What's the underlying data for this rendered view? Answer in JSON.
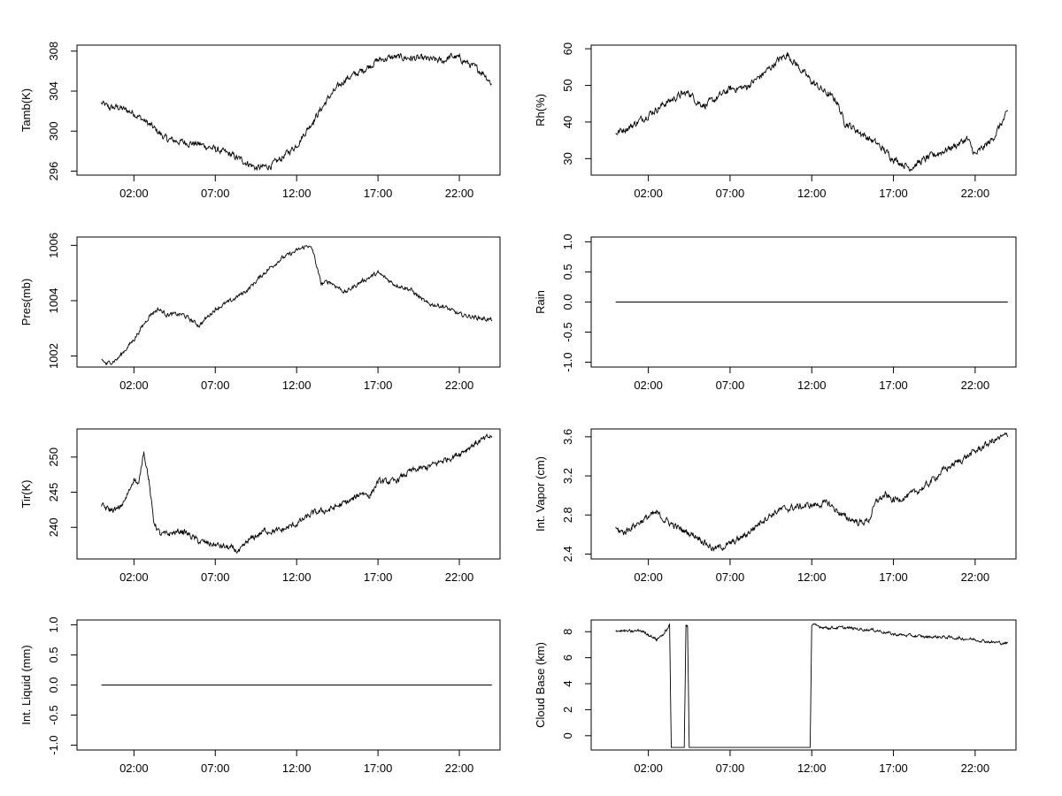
{
  "chart_data": [
    {
      "type": "line",
      "ylabel": "Tamb(K)",
      "yticks": [
        296,
        300,
        304,
        308
      ],
      "ylim": [
        295.6,
        308.6
      ],
      "xticks": [
        "02:00",
        "07:00",
        "12:00",
        "17:00",
        "22:00"
      ],
      "xlim_hours": [
        -1.5,
        24.5
      ],
      "x_hours": [
        0,
        0.5,
        1,
        2,
        3,
        4,
        5,
        6,
        7,
        8,
        8.5,
        9,
        9.5,
        10,
        10.5,
        11,
        12,
        13,
        14,
        15,
        16,
        17,
        18,
        19,
        20,
        21,
        21.5,
        22,
        23,
        23.5,
        24
      ],
      "values": [
        302.8,
        302.3,
        302.4,
        301.8,
        300.6,
        299.2,
        298.9,
        298.7,
        298.2,
        297.6,
        297.2,
        296.8,
        296.3,
        296.4,
        296.6,
        297.2,
        298.6,
        301,
        303.4,
        305.2,
        306,
        307.1,
        307.4,
        307.3,
        307.2,
        307,
        307.5,
        307.3,
        306.3,
        305.8,
        304.7
      ],
      "noise": 0.35,
      "color": "#000000"
    },
    {
      "type": "line",
      "ylabel": "Rh(%)",
      "yticks": [
        30,
        40,
        50,
        60
      ],
      "ylim": [
        25.5,
        61
      ],
      "xticks": [
        "02:00",
        "07:00",
        "12:00",
        "17:00",
        "22:00"
      ],
      "xlim_hours": [
        -1.5,
        24.5
      ],
      "x_hours": [
        0,
        1,
        2,
        3,
        4,
        4.5,
        5,
        5.5,
        6,
        7,
        8,
        9,
        10,
        10.5,
        11,
        12,
        13,
        13.5,
        14,
        15,
        16,
        17,
        18,
        19,
        20,
        21,
        21.5,
        22,
        23,
        24
      ],
      "values": [
        37,
        39,
        42,
        45,
        47.5,
        48,
        45.5,
        44.5,
        46,
        49,
        49.5,
        53,
        57,
        58.5,
        56,
        51,
        47.5,
        46,
        40,
        37,
        34,
        30,
        27.5,
        30,
        32,
        34,
        35.5,
        31,
        35,
        42.5
      ],
      "noise": 1.0,
      "color": "#000000"
    },
    {
      "type": "line",
      "ylabel": "Pres(mb)",
      "yticks": [
        1002,
        1004,
        1006
      ],
      "ylim": [
        1001.6,
        1006.3
      ],
      "xticks": [
        "02:00",
        "07:00",
        "12:00",
        "17:00",
        "22:00"
      ],
      "xlim_hours": [
        -1.5,
        24.5
      ],
      "x_hours": [
        0,
        0.3,
        1,
        2,
        3,
        3.5,
        4,
        5,
        6,
        7,
        8,
        9,
        10,
        11,
        12,
        12.7,
        13,
        13.5,
        14,
        14.5,
        15,
        16,
        17,
        17.5,
        18,
        19,
        20,
        21,
        22,
        23,
        24
      ],
      "values": [
        1001.9,
        1001.7,
        1001.9,
        1002.6,
        1003.5,
        1003.7,
        1003.5,
        1003.5,
        1003.1,
        1003.7,
        1004,
        1004.4,
        1005,
        1005.5,
        1005.8,
        1006.0,
        1005.8,
        1004.6,
        1004.7,
        1004.5,
        1004.3,
        1004.7,
        1005,
        1004.8,
        1004.6,
        1004.4,
        1003.9,
        1003.8,
        1003.5,
        1003.4,
        1003.3
      ],
      "noise": 0.08,
      "color": "#000000"
    },
    {
      "type": "line",
      "ylabel": "Rain",
      "yticks": [
        -1.0,
        -0.5,
        0.0,
        0.5,
        1.0
      ],
      "yticklabels": [
        "-1.0",
        "-0.5",
        "0.0",
        "0.5",
        "1.0"
      ],
      "ylim": [
        -1.08,
        1.08
      ],
      "xticks": [
        "02:00",
        "07:00",
        "12:00",
        "17:00",
        "22:00"
      ],
      "xlim_hours": [
        -1.5,
        24.5
      ],
      "x_hours": [
        0,
        24
      ],
      "values": [
        0,
        0
      ],
      "noise": 0,
      "color": "#000000"
    },
    {
      "type": "line",
      "ylabel": "Tir(K)",
      "yticks": [
        240,
        245,
        250
      ],
      "ylim": [
        235.5,
        254
      ],
      "xticks": [
        "02:00",
        "07:00",
        "12:00",
        "17:00",
        "22:00"
      ],
      "xlim_hours": [
        -1.5,
        24.5
      ],
      "x_hours": [
        0,
        0.5,
        1,
        1.5,
        2,
        2.3,
        2.6,
        2.9,
        3.2,
        3.6,
        4,
        5,
        6,
        7,
        8,
        8.5,
        9,
        10,
        11,
        12,
        13,
        14,
        15,
        15.5,
        16,
        16.5,
        17,
        18,
        19,
        20,
        21,
        22,
        23,
        24
      ],
      "values": [
        243,
        242.5,
        242.5,
        244,
        247,
        246,
        251,
        247,
        241,
        239,
        239,
        239.5,
        238,
        237.5,
        237,
        236.5,
        238,
        239.5,
        239.5,
        240.5,
        242,
        242.5,
        243.5,
        244,
        245,
        244.5,
        246.5,
        246.5,
        248,
        248.5,
        249.5,
        250.5,
        252,
        253
      ],
      "noise": 0.45,
      "color": "#000000"
    },
    {
      "type": "line",
      "ylabel": "Int. Vapor (cm)",
      "yticks": [
        2.4,
        2.8,
        3.2,
        3.6
      ],
      "yticklabels": [
        "2.4",
        "2.8",
        "3.2",
        "3.6"
      ],
      "ylim": [
        2.35,
        3.68
      ],
      "xticks": [
        "02:00",
        "07:00",
        "12:00",
        "17:00",
        "22:00"
      ],
      "xlim_hours": [
        -1.5,
        24.5
      ],
      "x_hours": [
        0,
        0.5,
        1,
        2,
        2.5,
        3,
        4,
        5,
        6,
        7,
        8,
        9,
        10,
        11,
        12,
        13,
        14,
        15,
        15.5,
        16,
        16.5,
        17,
        18,
        19,
        20,
        21,
        22,
        23,
        24
      ],
      "values": [
        2.65,
        2.62,
        2.68,
        2.78,
        2.82,
        2.75,
        2.65,
        2.58,
        2.45,
        2.5,
        2.6,
        2.75,
        2.85,
        2.88,
        2.9,
        2.92,
        2.78,
        2.72,
        2.75,
        2.95,
        3.0,
        2.95,
        3.0,
        3.1,
        3.25,
        3.35,
        3.45,
        3.55,
        3.62
      ],
      "noise": 0.035,
      "color": "#000000"
    },
    {
      "type": "line",
      "ylabel": "Int. Liquid (mm)",
      "yticks": [
        -1.0,
        -0.5,
        0.0,
        0.5,
        1.0
      ],
      "yticklabels": [
        "-1.0",
        "-0.5",
        "0.0",
        "0.5",
        "1.0"
      ],
      "ylim": [
        -1.08,
        1.08
      ],
      "xticks": [
        "02:00",
        "07:00",
        "12:00",
        "17:00",
        "22:00"
      ],
      "xlim_hours": [
        -1.5,
        24.5
      ],
      "x_hours": [
        0,
        24
      ],
      "values": [
        0,
        0
      ],
      "noise": 0,
      "color": "#000000"
    },
    {
      "type": "line",
      "ylabel": "Cloud Base (km)",
      "yticks": [
        0,
        2,
        4,
        6,
        8
      ],
      "ylim": [
        -1.1,
        8.9
      ],
      "xticks": [
        "02:00",
        "07:00",
        "12:00",
        "17:00",
        "22:00"
      ],
      "xlim_hours": [
        -1.5,
        24.5
      ],
      "x_hours": [
        0,
        1,
        1.5,
        2,
        2.5,
        3,
        3.3,
        3.4,
        4.2,
        4.3,
        4.4,
        4.5,
        11.9,
        12.0,
        12.5,
        13,
        14,
        15,
        16,
        17,
        18,
        19,
        20,
        21,
        22,
        23,
        24
      ],
      "values": [
        8.1,
        8.0,
        8.1,
        7.8,
        7.4,
        7.9,
        8.5,
        -0.9,
        -0.9,
        8.5,
        8.5,
        -0.9,
        -0.9,
        8.5,
        8.4,
        8.3,
        8.3,
        8.2,
        8.1,
        7.8,
        7.7,
        7.6,
        7.6,
        7.5,
        7.4,
        7.2,
        7.1
      ],
      "noise": 0.12,
      "noise_min": 6.5,
      "color": "#000000"
    }
  ]
}
